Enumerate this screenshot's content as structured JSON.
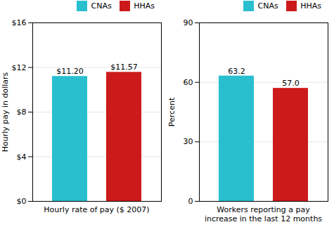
{
  "chart_data": [
    {
      "type": "bar",
      "categories": [
        "CNAs",
        "HHAs"
      ],
      "values": [
        11.2,
        11.57
      ],
      "value_labels": [
        "$11.20",
        "$11.57"
      ],
      "colors": [
        "#29bfcf",
        "#cc1a1a"
      ],
      "ylabel": "Hourly pay in dollars",
      "xlabel": "Hourly rate of pay ($ 2007)",
      "ylim": [
        0,
        16
      ],
      "yticks": [
        {
          "value": 0,
          "label": "$0"
        },
        {
          "value": 4,
          "label": "$4"
        },
        {
          "value": 8,
          "label": "$8"
        },
        {
          "value": 12,
          "label": "$12"
        },
        {
          "value": 16,
          "label": "$16"
        }
      ],
      "grid": true,
      "legend": "upper right",
      "data_labels": true,
      "tick_labels": "y"
    },
    {
      "type": "bar",
      "categories": [
        "CNAs",
        "HHAs"
      ],
      "values": [
        63.2,
        57.0
      ],
      "value_labels": [
        "63.2",
        "57.0"
      ],
      "colors": [
        "#29bfcf",
        "#cc1a1a"
      ],
      "ylabel": "Percent",
      "xlabel": "Workers reporting a pay\nincrease in the last 12 months",
      "ylim": [
        0,
        90
      ],
      "yticks": [
        0,
        30,
        60,
        90
      ],
      "grid": true,
      "legend": "upper right",
      "data_labels": true,
      "tick_labels": "y"
    }
  ]
}
